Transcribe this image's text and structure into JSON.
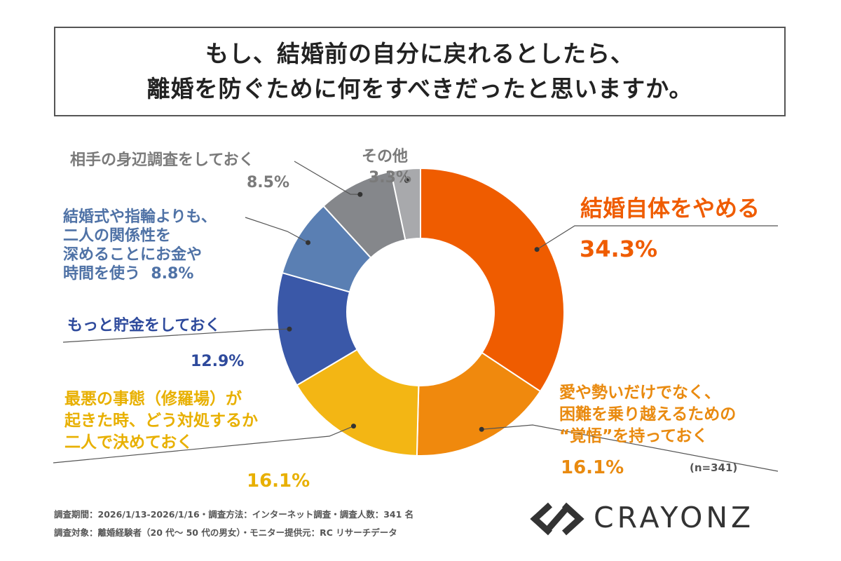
{
  "title": {
    "line1": "もし、結婚前の自分に戻れるとしたら、",
    "line2": "離婚を防ぐために何をすべきだったと思いますか。"
  },
  "chart_data": {
    "type": "pie",
    "categories": [
      "結婚自体をやめる",
      "愛や勢いだけでなく、困難を乗り越えるための“覚悟”を持っておく",
      "最悪の事態（修羅場）が起きた時、どう対処するか二人で決めておく",
      "もっと貯金をしておく",
      "結婚式や指輪よりも、二人の関係性を深めることにお金や時間を使う",
      "相手の身辺調査をしておく",
      "その他"
    ],
    "values": [
      34.3,
      16.1,
      16.1,
      12.9,
      8.8,
      8.5,
      3.3
    ],
    "colors": [
      "#ef5c00",
      "#f0890d",
      "#f3b614",
      "#3a58a8",
      "#5a7fb3",
      "#85878b",
      "#a8a9ac"
    ],
    "value_labels": [
      "34.3%",
      "16.1%",
      "16.1%",
      "12.9%",
      "8.8%",
      "8.5%",
      "3.3%"
    ],
    "label_lines": [
      [
        "結婚自体をやめる"
      ],
      [
        "愛や勢いだけでなく、",
        "困難を乗り越えるための",
        "“覚悟”を持っておく"
      ],
      [
        "最悪の事態（修羅場）が",
        "起きた時、どう対処するか",
        "二人で決めておく"
      ],
      [
        "もっと貯金をしておく"
      ],
      [
        "結婚式や指輪よりも、",
        "二人の関係性を",
        "深めることにお金や",
        "時間を使う"
      ],
      [
        "相手の身辺調査をしておく"
      ],
      [
        "その他"
      ]
    ],
    "sample_note": "(n=341)"
  },
  "footer": {
    "line1": "調査期間：2026/1/13-2026/1/16・調査方法：インターネット調査・調査人数：341 名",
    "line2": "調査対象：離婚経験者（20 代～ 50 代の男女）・モニター提供元：RC リサーチデータ"
  },
  "logo": {
    "text": "CRAYONZ",
    "icon": "crayonz-logo-icon"
  }
}
